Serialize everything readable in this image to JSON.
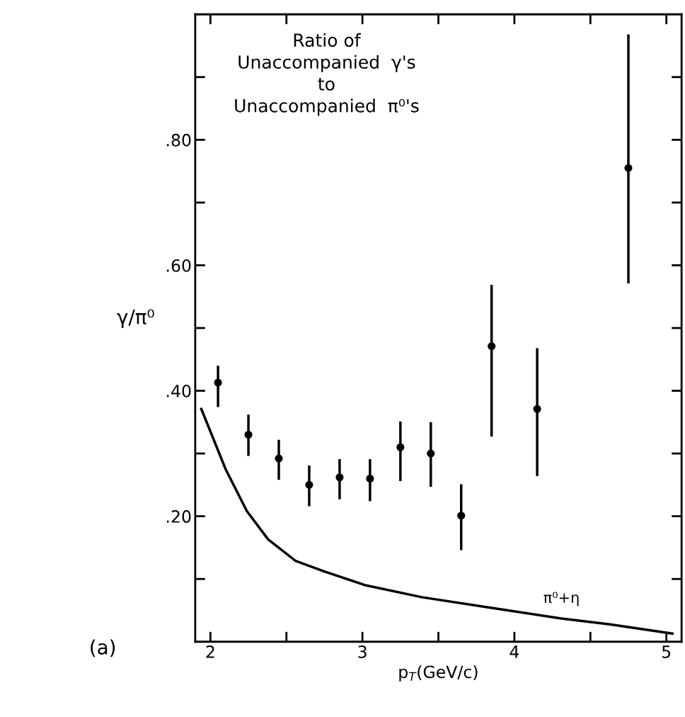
{
  "chart_data": {
    "type": "scatter",
    "title": "Ratio of\nUnaccompanied  γ's\nto\nUnaccompanied  π⁰'s",
    "xlabel": "p$_{T}$(GeV/c)",
    "ylabel": "γ/π⁰",
    "annotations": [
      "(a)"
    ],
    "series": [
      {
        "color": "#000000",
        "marker": "circle",
        "x": [
          2.05,
          2.25,
          2.45,
          2.65,
          2.85,
          3.05,
          3.25,
          3.45,
          3.65,
          3.85,
          4.15,
          4.75
        ],
        "values": [
          0.413,
          0.33,
          0.292,
          0.25,
          0.262,
          0.26,
          0.31,
          0.3,
          0.201,
          0.471,
          0.371,
          0.755
        ],
        "errors": [
          [
            0.376,
            0.438
          ],
          [
            0.298,
            0.36
          ],
          [
            0.26,
            0.32
          ],
          [
            0.218,
            0.279
          ],
          [
            0.229,
            0.289
          ],
          [
            0.226,
            0.289
          ],
          [
            0.258,
            0.349
          ],
          [
            0.249,
            0.348
          ],
          [
            0.148,
            0.249
          ],
          [
            0.329,
            0.567
          ],
          [
            0.266,
            0.466
          ],
          [
            0.573,
            0.966
          ]
        ]
      },
      {
        "type": "line",
        "name": "π⁰+η",
        "color": "#000000",
        "marker": "none",
        "line_style": "solid",
        "x": [
          1.94,
          2.1,
          2.24,
          2.38,
          2.56,
          2.75,
          3.02,
          3.39,
          3.85,
          4.31,
          4.62,
          5.04
        ],
        "values": [
          0.371,
          0.275,
          0.208,
          0.163,
          0.129,
          0.112,
          0.09,
          0.071,
          0.054,
          0.037,
          0.028,
          0.013
        ]
      }
    ],
    "xlim": [
      1.9,
      5.1
    ],
    "ylim": [
      0,
      1.0
    ],
    "xticks": [
      2,
      {
        "value": 2.5,
        "label": null
      },
      3,
      {
        "value": 3.5,
        "label": null
      },
      4,
      {
        "value": 4.5,
        "label": null
      },
      5
    ],
    "yticks": [
      {
        "value": 0.1,
        "label": null
      },
      {
        "value": 0.2,
        "label": ".20"
      },
      {
        "value": 0.3,
        "label": null
      },
      {
        "value": 0.4,
        "label": ".40"
      },
      {
        "value": 0.5,
        "label": null
      },
      {
        "value": 0.6,
        "label": ".60"
      },
      {
        "value": 0.7,
        "label": null
      },
      {
        "value": 0.8,
        "label": ".80"
      },
      {
        "value": 0.9,
        "label": null
      }
    ],
    "grid": false,
    "legend": false
  }
}
